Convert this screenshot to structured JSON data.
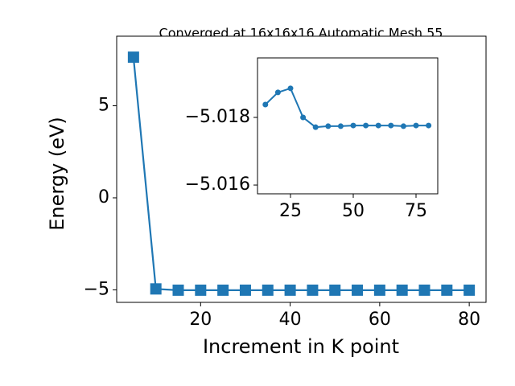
{
  "chart_data": [
    {
      "type": "line",
      "title": "Converged at 16x16x16 Automatic Mesh 55",
      "x_label": "Increment in K point",
      "y_label": "Energy (eV)",
      "marker": "square",
      "x": [
        5,
        10,
        15,
        20,
        25,
        30,
        35,
        40,
        45,
        50,
        55,
        60,
        65,
        70,
        75,
        80
      ],
      "series": [
        {
          "color": "#1f77b4",
          "values": [
            7.64,
            -4.95,
            -5.01838,
            -5.01874,
            -5.01886,
            -5.018,
            -5.01771,
            -5.01774,
            -5.01774,
            -5.01776,
            -5.01776,
            -5.01776,
            -5.01776,
            -5.01774,
            -5.01776,
            -5.01776
          ]
        }
      ],
      "xlim": [
        1.25,
        83.75
      ],
      "ylim": [
        -5.68,
        8.78
      ],
      "xticks": [
        20,
        40,
        60,
        80
      ],
      "yticks": [
        {
          "value": -5,
          "label": "−5"
        },
        0,
        5
      ]
    },
    {
      "type": "line",
      "marker": "circle",
      "x": [
        15,
        20,
        25,
        30,
        35,
        40,
        45,
        50,
        55,
        60,
        65,
        70,
        75,
        80
      ],
      "series": [
        {
          "color": "#1f77b4",
          "values": [
            -5.01838,
            -5.01874,
            -5.01886,
            -5.018,
            -5.01771,
            -5.01774,
            -5.01774,
            -5.01776,
            -5.01776,
            -5.01776,
            -5.01776,
            -5.01774,
            -5.01776,
            -5.01776
          ]
        }
      ],
      "xlim": [
        11.86,
        83.65
      ],
      "ylim": [
        -5.01574,
        -5.01976
      ],
      "xticks": [
        25,
        50,
        75
      ],
      "yticks": [
        {
          "value": -5.018,
          "label": "−5.018"
        },
        {
          "value": -5.016,
          "label": "−5.016"
        }
      ]
    }
  ]
}
